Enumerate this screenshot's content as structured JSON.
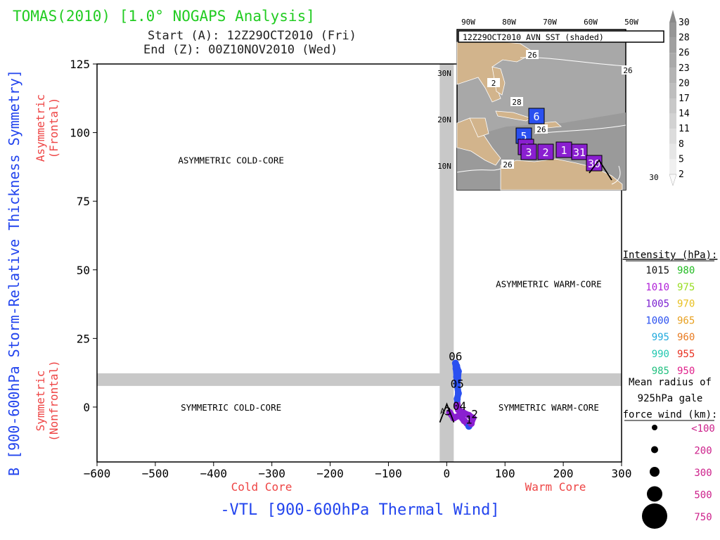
{
  "header": {
    "title": "TOMAS(2010) [1.0° NOGAPS Analysis]",
    "start": "Start (A): 12Z29OCT2010 (Fri)",
    "end": "End (Z): 00Z10NOV2010 (Wed)"
  },
  "colors": {
    "title": "#22cc22",
    "axis_label": "#2244ee",
    "region_label": "#ee4444",
    "band": "#c8c8c8",
    "land": "#d2b48c",
    "sea": "#a8a8a8",
    "track_purple": "#8a1fd0",
    "track_blue": "#2a50f0"
  },
  "chart_data": {
    "type": "scatter",
    "xlabel": "-VTL [900-600hPa Thermal Wind]",
    "ylabel": "B [900-600hPa Storm-Relative Thickness Symmetry]",
    "xlim": [
      -600,
      300
    ],
    "ylim": [
      -20,
      125
    ],
    "xticks": [
      -600,
      -500,
      -400,
      -300,
      -200,
      -100,
      0,
      100,
      200,
      300
    ],
    "yticks": [
      0,
      25,
      50,
      75,
      100,
      125
    ],
    "x_region_labels": {
      "left": "Cold Core",
      "right": "Warm Core"
    },
    "y_region_labels": {
      "top": [
        "Asymmetric",
        "(Frontal)"
      ],
      "bottom": [
        "Symmetric",
        "(Nonfrontal)"
      ]
    },
    "quadrants": [
      {
        "label": "ASYMMETRIC COLD-CORE",
        "x": -370,
        "y": 90
      },
      {
        "label": "ASYMMETRIC WARM-CORE",
        "x": 175,
        "y": 45
      },
      {
        "label": "SYMMETRIC COLD-CORE",
        "x": -370,
        "y": 0
      },
      {
        "label": "SYMMETRIC WARM-CORE",
        "x": 175,
        "y": 0
      }
    ],
    "band_x": 0,
    "band_y": 10,
    "track": [
      {
        "x": 5,
        "y": -2,
        "pressure": 1008
      },
      {
        "x": 12,
        "y": -4,
        "pressure": 1008
      },
      {
        "x": 22,
        "y": -3,
        "pressure": 1005
      },
      {
        "x": 30,
        "y": -5,
        "pressure": 1005
      },
      {
        "x": 35,
        "y": -6,
        "pressure": 1003
      },
      {
        "x": 38,
        "y": -7,
        "pressure": 1002
      },
      {
        "x": 42,
        "y": -6,
        "pressure": 1004
      },
      {
        "x": 45,
        "y": -4,
        "pressure": 1005
      },
      {
        "x": 38,
        "y": -3,
        "pressure": 1006
      },
      {
        "x": 28,
        "y": -2,
        "pressure": 1006
      },
      {
        "x": 20,
        "y": -1,
        "pressure": 1007
      },
      {
        "x": 18,
        "y": 1,
        "pressure": 1008
      },
      {
        "x": 18,
        "y": 3,
        "pressure": 1002
      },
      {
        "x": 20,
        "y": 5,
        "pressure": 1001
      },
      {
        "x": 18,
        "y": 8,
        "pressure": 1000
      },
      {
        "x": 17,
        "y": 11,
        "pressure": 1000
      },
      {
        "x": 16,
        "y": 14,
        "pressure": 1000
      },
      {
        "x": 15,
        "y": 16,
        "pressure": 1000
      },
      {
        "x": 17,
        "y": 15,
        "pressure": 1000
      },
      {
        "x": 20,
        "y": 13,
        "pressure": 1000
      },
      {
        "x": 19,
        "y": 10,
        "pressure": 1000
      }
    ],
    "track_labels": [
      {
        "text": "06",
        "x": 15,
        "y": 17
      },
      {
        "text": "05",
        "x": 18,
        "y": 7
      },
      {
        "text": "04",
        "x": 22,
        "y": -1
      },
      {
        "text": "3",
        "x": 2,
        "y": -3
      },
      {
        "text": "2",
        "x": 48,
        "y": -4
      },
      {
        "text": "1",
        "x": 38,
        "y": -6
      }
    ],
    "start_marker": "A",
    "end_marker": "Z"
  },
  "inset": {
    "title": "12Z29OCT2010 AVN SST (shaded)",
    "lon_labels": [
      "90W",
      "80W",
      "70W",
      "60W",
      "50W"
    ],
    "lat_labels": [
      "30N",
      "20N",
      "10N"
    ],
    "sst_labels": [
      "26",
      "26",
      "28",
      "2",
      "26",
      "26",
      "30"
    ],
    "colorbar_levels": [
      "30",
      "28",
      "26",
      "23",
      "20",
      "17",
      "14",
      "11",
      "8",
      "5",
      "2"
    ],
    "day_boxes": [
      {
        "text": "6",
        "fill": "#2a50f0"
      },
      {
        "text": "5",
        "fill": "#2a50f0"
      },
      {
        "text": "4",
        "fill": "#8a1fd0"
      },
      {
        "text": "3",
        "fill": "#8a1fd0"
      },
      {
        "text": "2",
        "fill": "#8a1fd0"
      },
      {
        "text": "1",
        "fill": "#8a1fd0"
      },
      {
        "text": "31",
        "fill": "#8a1fd0"
      },
      {
        "text": "30",
        "fill": "#8a1fd0"
      }
    ]
  },
  "legend": {
    "title": "Intensity (hPa):",
    "rows": [
      {
        "left": "1015",
        "left_color": "#111111",
        "right": "980",
        "right_color": "#22bb22"
      },
      {
        "left": "1010",
        "left_color": "#b01fd8",
        "right": "975",
        "right_color": "#99dd22"
      },
      {
        "left": "1005",
        "left_color": "#7a1fd0",
        "right": "970",
        "right_color": "#e8c020"
      },
      {
        "left": "1000",
        "left_color": "#2a50f0",
        "right": "965",
        "right_color": "#e8a020"
      },
      {
        "left": "995",
        "left_color": "#22aadd",
        "right": "960",
        "right_color": "#e87a20"
      },
      {
        "left": "990",
        "left_color": "#22c8b0",
        "right": "955",
        "right_color": "#e83020"
      },
      {
        "left": "985",
        "left_color": "#22c080",
        "right": "950",
        "right_color": "#e0208a"
      }
    ],
    "radius_title": [
      "Mean radius of",
      "925hPa gale",
      "force wind (km):"
    ],
    "radius_rows": [
      {
        "label": "<100"
      },
      {
        "label": "200"
      },
      {
        "label": "300"
      },
      {
        "label": "500"
      },
      {
        "label": "750"
      }
    ]
  }
}
